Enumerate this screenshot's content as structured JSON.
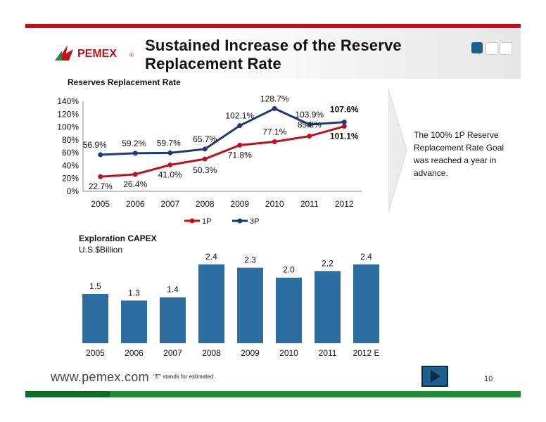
{
  "header": {
    "title_line1": "Sustained Increase of the Reserve",
    "title_line2": "Replacement Rate",
    "logo_text": "PEMEX"
  },
  "colors": {
    "brand_red": "#c0111a",
    "series_1p": "#c0111a",
    "series_3p": "#1f3a70",
    "bar": "#2e6da0",
    "footer_green": "#1e8a3a"
  },
  "note": "The 100% 1P Reserve Replacement Rate Goal was reached a year in advance.",
  "footer": {
    "url": "www.pemex.com",
    "estimate_note": "\"E\" stands for estimated.",
    "page_number": "10"
  },
  "chart_data": [
    {
      "type": "line",
      "title": "Reserves Replacement Rate",
      "categories": [
        "2005",
        "2006",
        "2007",
        "2008",
        "2009",
        "2010",
        "2011",
        "2012"
      ],
      "series": [
        {
          "name": "1P",
          "values": [
            22.7,
            26.4,
            41.0,
            50.3,
            71.8,
            77.1,
            85.8,
            101.1
          ],
          "labels": [
            "22.7%",
            "26.4%",
            "41.0%",
            "50.3%",
            "71.8%",
            "77.1%",
            "85.8%",
            "101.1%"
          ]
        },
        {
          "name": "3P",
          "values": [
            56.9,
            59.2,
            59.7,
            65.7,
            102.1,
            128.7,
            103.9,
            107.6
          ],
          "labels": [
            "56.9%",
            "59.2%",
            "59.7%",
            "65.7%",
            "102.1%",
            "128.7%",
            "103.9%",
            "107.6%"
          ]
        }
      ],
      "yticks": [
        "0%",
        "20%",
        "40%",
        "60%",
        "80%",
        "100%",
        "120%",
        "140%"
      ],
      "ylim": [
        0,
        140
      ],
      "grid": false,
      "legend": "bottom"
    },
    {
      "type": "bar",
      "title": "Exploration CAPEX",
      "subtitle": "U.S.$Billion",
      "categories": [
        "2005",
        "2006",
        "2007",
        "2008",
        "2009",
        "2010",
        "2011",
        "2012 E"
      ],
      "values": [
        1.5,
        1.3,
        1.4,
        2.4,
        2.3,
        2.0,
        2.2,
        2.4
      ],
      "labels": [
        "1.5",
        "1.3",
        "1.4",
        "2.4",
        "2.3",
        "2.0",
        "2.2",
        "2.4"
      ],
      "ylim": [
        0,
        2.7
      ],
      "grid": false
    }
  ]
}
